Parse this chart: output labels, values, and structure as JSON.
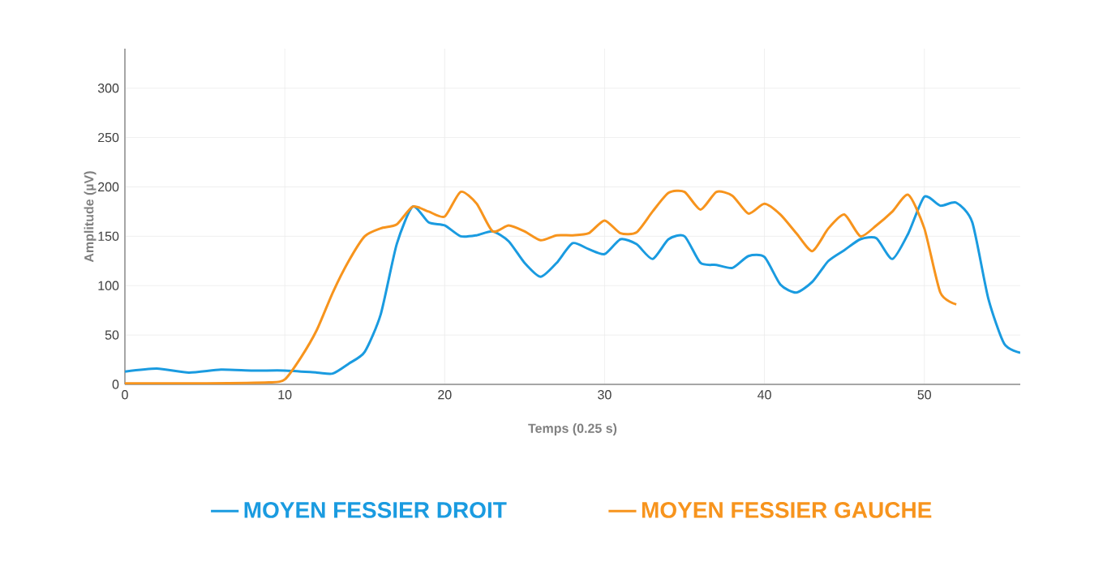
{
  "chart_data": {
    "type": "line",
    "xlabel": "Temps (0.25 s)",
    "ylabel": "Amplitude (µV)",
    "xlim": [
      0,
      56
    ],
    "ylim": [
      0,
      340
    ],
    "xticks": [
      0,
      10,
      20,
      30,
      40,
      50
    ],
    "yticks": [
      0,
      50,
      100,
      150,
      200,
      250,
      300
    ],
    "grid": true,
    "legend": "bottom",
    "series": [
      {
        "name": "MOYEN FESSIER DROIT",
        "color": "#1a9be0",
        "x": [
          0,
          2,
          4,
          6,
          8,
          10,
          12,
          13,
          14,
          15,
          16,
          17,
          18,
          19,
          20,
          21,
          22,
          23,
          24,
          25,
          26,
          27,
          28,
          29,
          30,
          31,
          32,
          33,
          34,
          35,
          36,
          37,
          38,
          39,
          40,
          41,
          42,
          43,
          44,
          45,
          46,
          47,
          48,
          49,
          50,
          51,
          52,
          53,
          54,
          55,
          56
        ],
        "values": [
          13,
          16,
          12,
          15,
          14,
          14,
          12,
          11,
          21,
          33,
          71,
          142,
          180,
          164,
          161,
          150,
          151,
          155,
          145,
          123,
          109,
          123,
          143,
          137,
          132,
          147,
          142,
          127,
          147,
          150,
          123,
          121,
          118,
          130,
          129,
          101,
          93,
          104,
          125,
          136,
          147,
          148,
          127,
          153,
          190,
          181,
          184,
          164,
          87,
          41,
          32
        ]
      },
      {
        "name": "MOYEN FESSIER GAUCHE",
        "color": "#f7941d",
        "x": [
          0,
          5,
          9,
          10,
          11,
          12,
          13,
          14,
          15,
          16,
          17,
          18,
          19,
          20,
          21,
          22,
          23,
          24,
          25,
          26,
          27,
          28,
          29,
          30,
          31,
          32,
          33,
          34,
          35,
          36,
          37,
          38,
          39,
          40,
          41,
          42,
          43,
          44,
          45,
          46,
          47,
          48,
          49,
          50,
          51,
          52
        ],
        "values": [
          1,
          1,
          2,
          5,
          27,
          55,
          93,
          125,
          150,
          158,
          162,
          180,
          175,
          170,
          195,
          183,
          155,
          161,
          155,
          146,
          151,
          151,
          153,
          166,
          153,
          154,
          175,
          194,
          195,
          177,
          195,
          191,
          173,
          183,
          172,
          153,
          135,
          158,
          172,
          150,
          161,
          175,
          192,
          158,
          93,
          81
        ]
      }
    ]
  }
}
